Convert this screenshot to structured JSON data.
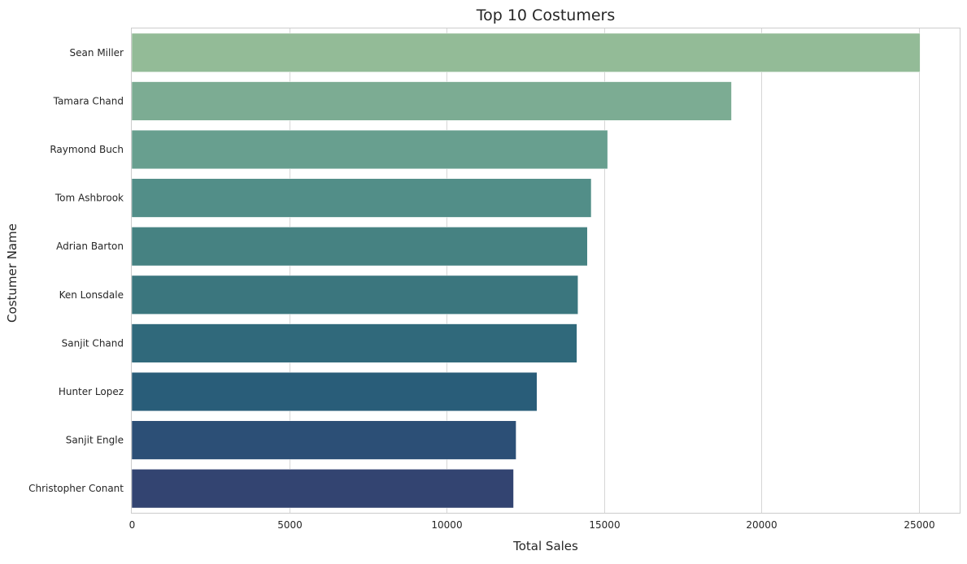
{
  "chart_data": {
    "type": "bar",
    "orientation": "horizontal",
    "title": "Top 10 Costumers",
    "xlabel": "Total Sales",
    "ylabel": "Costumer Name",
    "categories": [
      "Sean Miller",
      "Tamara Chand",
      "Raymond Buch",
      "Tom Ashbrook",
      "Adrian Barton",
      "Ken Lonsdale",
      "Sanjit Chand",
      "Hunter Lopez",
      "Sanjit Engle",
      "Christopher Conant"
    ],
    "values": [
      25043,
      19052,
      15117,
      14596,
      14474,
      14175,
      14142,
      12873,
      12209,
      12129
    ],
    "xlim": [
      0,
      26300
    ],
    "xticks": [
      0,
      5000,
      10000,
      15000,
      20000,
      25000
    ],
    "xtick_labels": [
      "0",
      "5000",
      "10000",
      "15000",
      "20000",
      "25000"
    ],
    "grid": "vertical",
    "legend": "none",
    "colors": [
      "#93bb97",
      "#7cac93",
      "#689f8f",
      "#528e88",
      "#468282",
      "#3b767e",
      "#30697b",
      "#295d79",
      "#2c4f76",
      "#334471"
    ]
  }
}
